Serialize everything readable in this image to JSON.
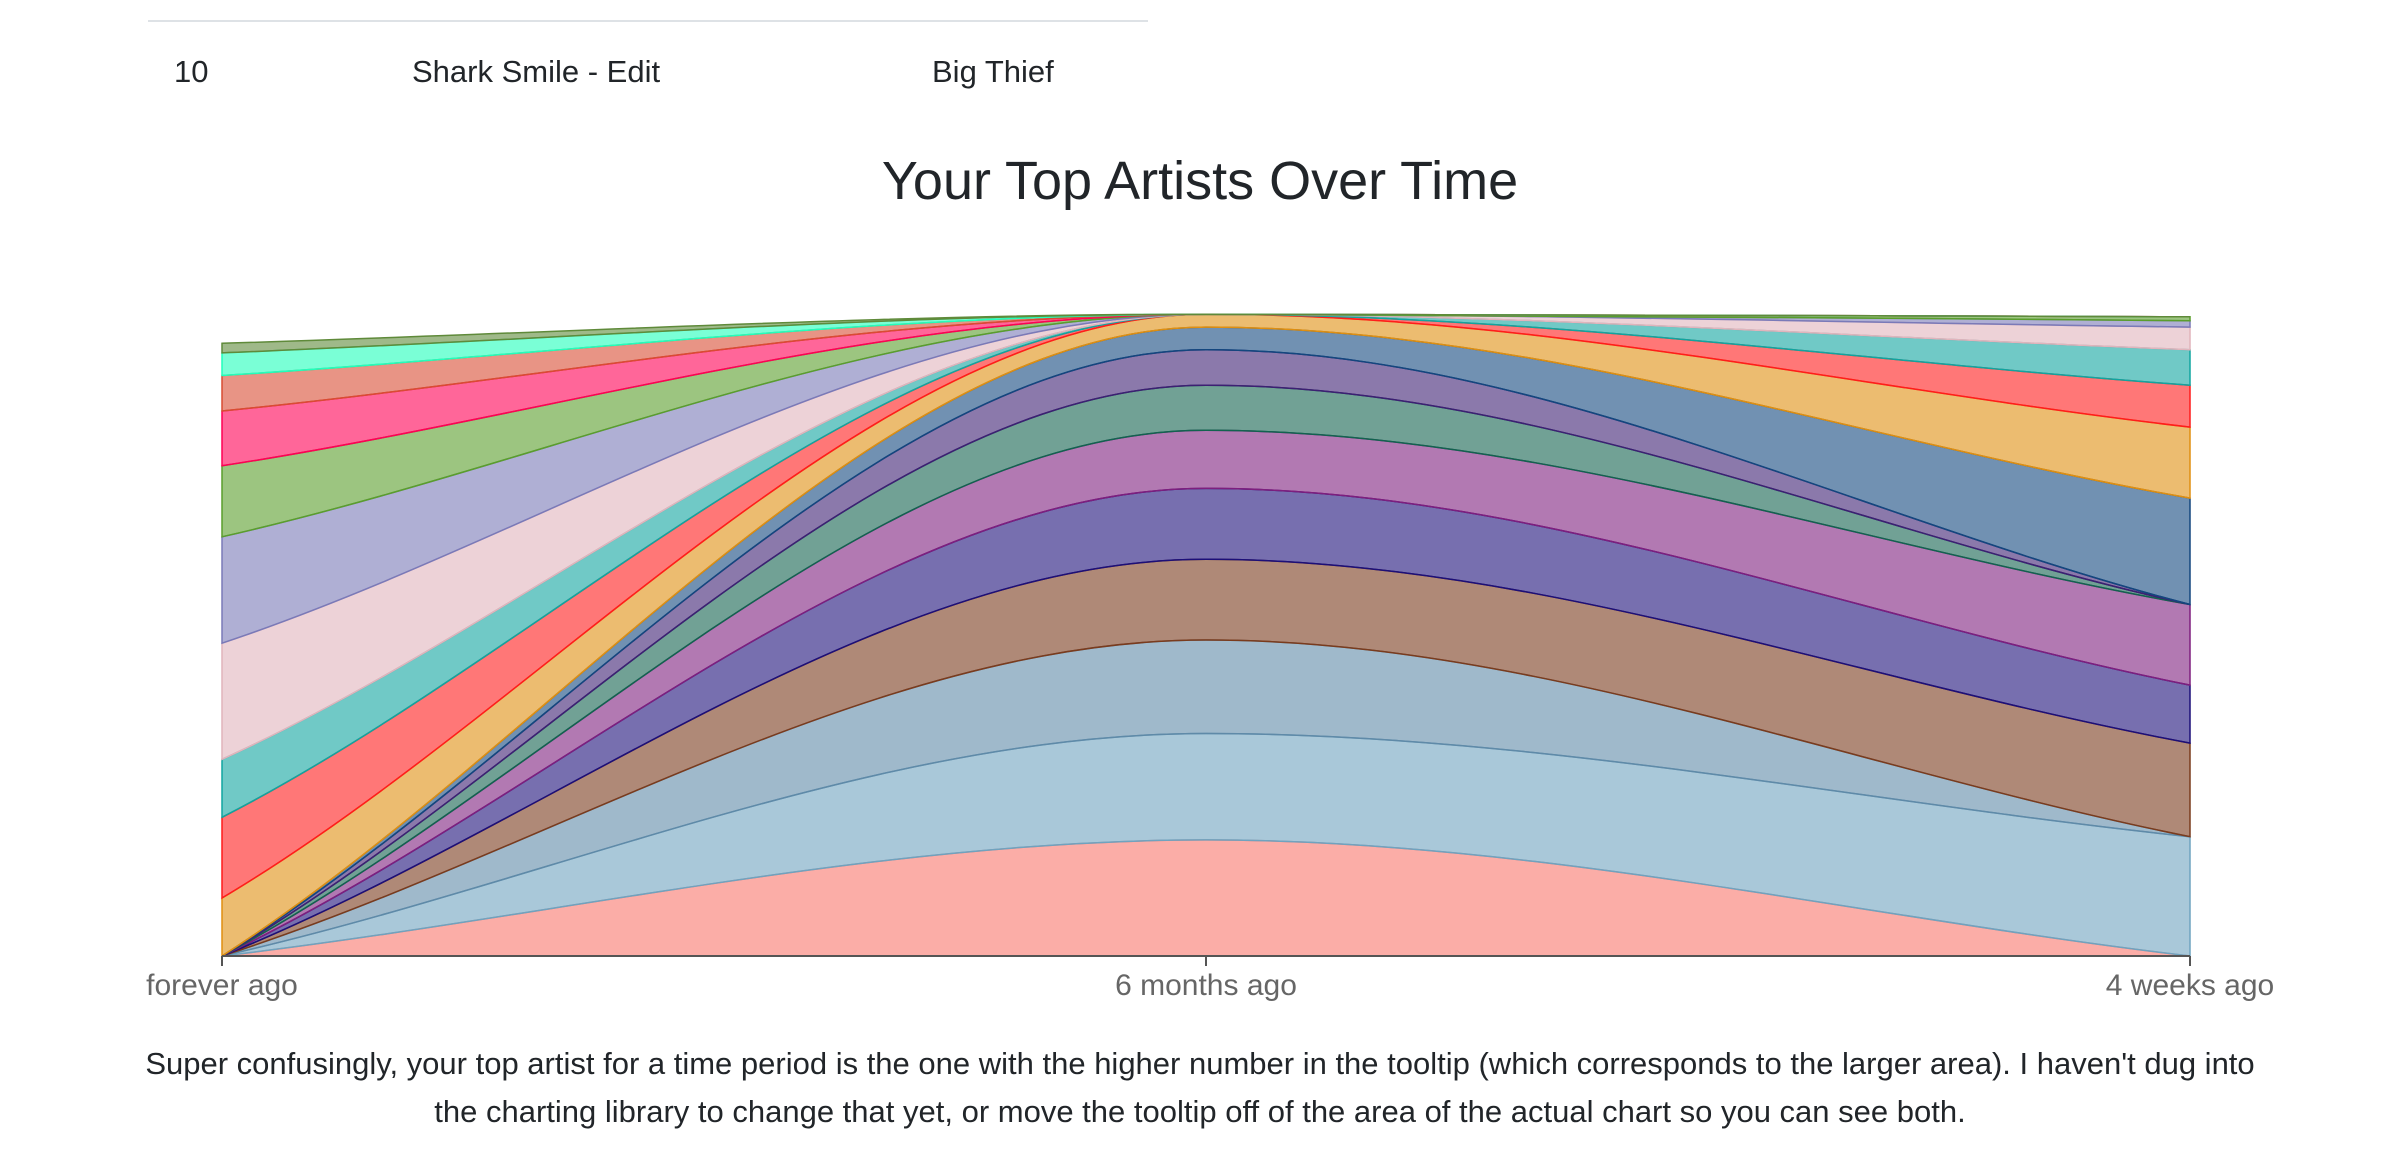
{
  "table": {
    "row": {
      "rank": "10",
      "track": "Shark Smile - Edit",
      "artist": "Big Thief"
    }
  },
  "chart_title": "Your Top Artists Over Time",
  "caption": "Super confusingly, your top artist for a time period is the one with the higher number in the tooltip (which corresponds to the larger area). I haven't dug into the charting library to change that yet, or move the tooltip off of the area of the actual chart so you can see both.",
  "chart_data": {
    "type": "area",
    "stacked": true,
    "normalized": true,
    "categories": [
      "forever ago",
      "6 months ago",
      "4 weeks ago"
    ],
    "ylim": [
      0,
      100
    ],
    "grid": false,
    "legend": "none",
    "series": [
      {
        "values": [
          0.0,
          18.0,
          0.0
        ],
        "color": "#f8766d"
      },
      {
        "values": [
          0.0,
          16.5,
          18.5
        ],
        "color": "#6fa3bf"
      },
      {
        "values": [
          0.0,
          14.5,
          0.0
        ],
        "color": "#5f8aa8"
      },
      {
        "values": [
          0.0,
          12.5,
          14.5
        ],
        "color": "#7a3b1d"
      },
      {
        "values": [
          0.0,
          11.0,
          9.0
        ],
        "color": "#1c0f79"
      },
      {
        "values": [
          0.0,
          9.0,
          12.5
        ],
        "color": "#7e1f7e"
      },
      {
        "values": [
          0.0,
          7.0,
          0.0
        ],
        "color": "#12634f"
      },
      {
        "values": [
          0.0,
          5.5,
          0.0
        ],
        "color": "#3d1f73"
      },
      {
        "values": [
          0.0,
          3.5,
          16.5
        ],
        "color": "#13477e"
      },
      {
        "values": [
          9.0,
          2.0,
          11.0
        ],
        "color": "#e08f10"
      },
      {
        "values": [
          12.5,
          0.0,
          6.5
        ],
        "color": "#ff1c1c"
      },
      {
        "values": [
          9.0,
          0.0,
          5.5
        ],
        "color": "#10a5a0"
      },
      {
        "values": [
          18.0,
          0.0,
          3.5
        ],
        "color": "#e1b4bc"
      },
      {
        "values": [
          16.5,
          0.0,
          1.0
        ],
        "color": "#7a7ab8"
      },
      {
        "values": [
          11.0,
          0.0,
          0.6
        ],
        "color": "#5a9e2c"
      },
      {
        "values": [
          8.5,
          0.0,
          0.0
        ],
        "color": "#ff0055"
      },
      {
        "values": [
          5.5,
          0.0,
          0.0
        ],
        "color": "#d84d33"
      },
      {
        "values": [
          3.5,
          0.0,
          0.0
        ],
        "color": "#22ffbb"
      },
      {
        "values": [
          1.5,
          0.0,
          0.0
        ],
        "color": "#5f8a3a"
      }
    ]
  }
}
